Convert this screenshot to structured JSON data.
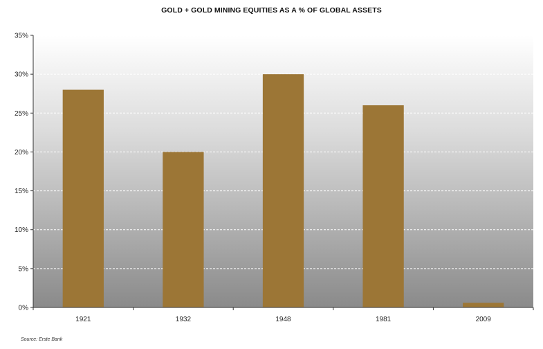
{
  "chart_data": {
    "type": "bar",
    "title": "GOLD + GOLD MINING EQUITIES AS A % OF GLOBAL ASSETS",
    "categories": [
      "1921",
      "1932",
      "1948",
      "1981",
      "2009"
    ],
    "values": [
      28,
      20,
      30,
      26,
      0.6
    ],
    "ylim": [
      0,
      35
    ],
    "yticks": [
      0,
      5,
      10,
      15,
      20,
      25,
      30,
      35
    ],
    "ytick_labels": [
      "0%",
      "5%",
      "10%",
      "15%",
      "20%",
      "25%",
      "30%",
      "35%"
    ],
    "xlabel": "",
    "ylabel": "",
    "grid": true,
    "bar_color": "#9c7636",
    "source": "Source: Erste Bank"
  }
}
